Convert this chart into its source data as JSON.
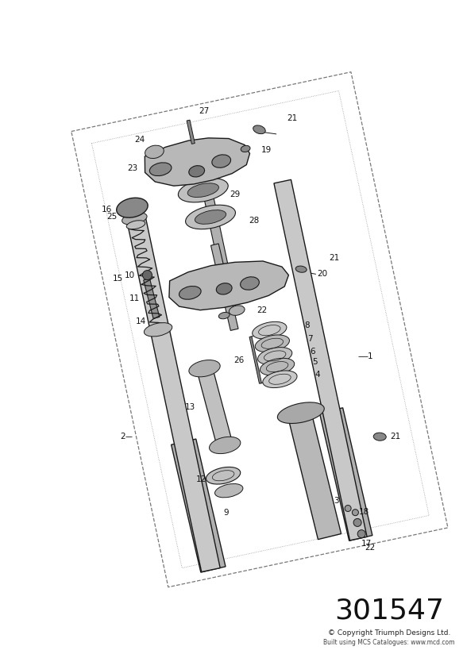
{
  "part_number": "301547",
  "copyright_line1": "© Copyright Triumph Designs Ltd.",
  "copyright_line2": "Built using MCS Catalogues: www.mcd.com",
  "bg_color": "#ffffff",
  "diagram_color": "#1a1a1a",
  "fig_width": 5.83,
  "fig_height": 8.24,
  "dpi": 100,
  "tilt_deg": 15
}
